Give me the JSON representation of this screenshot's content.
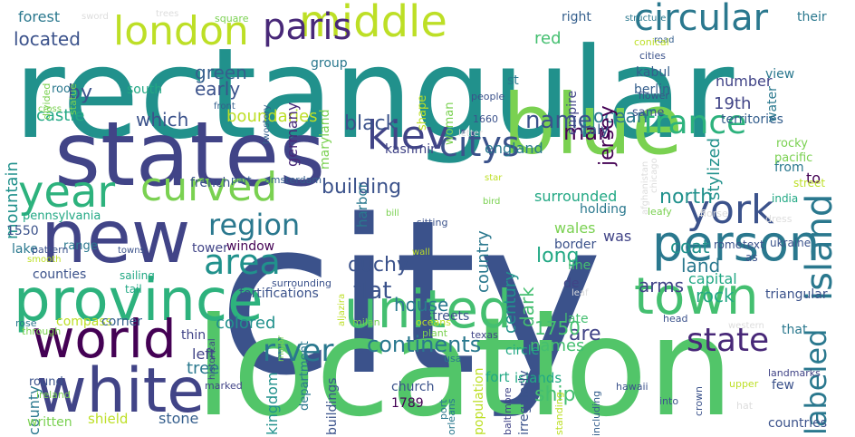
{
  "title": "word cloud",
  "palette": {
    "darkpurple": "#440154",
    "indigo": "#414487",
    "slate": "#355f8d",
    "steel": "#2a788e",
    "teal": "#21918c",
    "sea": "#22a884",
    "green": "#44bf70",
    "lime": "#7ad151",
    "yellowgreen": "#bddf26",
    "yellow": "#e4e419"
  },
  "words": [
    {
      "t": "city",
      "c": "#3b528b"
    },
    {
      "t": "location",
      "c": "#52c569"
    },
    {
      "t": "rectangular",
      "c": "#21918c"
    },
    {
      "t": "states",
      "c": "#414487"
    },
    {
      "t": "blue",
      "c": "#7ad151"
    },
    {
      "t": "new",
      "c": "#414487"
    },
    {
      "t": "white",
      "c": "#414487"
    },
    {
      "t": "province",
      "c": "#2db27d"
    },
    {
      "t": "united",
      "c": "#44bf70"
    },
    {
      "t": "world",
      "c": "#440154"
    },
    {
      "t": "town",
      "c": "#44bf70"
    },
    {
      "t": "person",
      "c": "#2a788e"
    },
    {
      "t": "york",
      "c": "#3b528b"
    },
    {
      "t": "island",
      "c": "#2a788e"
    },
    {
      "t": "middle",
      "c": "#bddf26"
    },
    {
      "t": "london",
      "c": "#bddf26"
    },
    {
      "t": "paris",
      "c": "#482878"
    },
    {
      "t": "circular",
      "c": "#2a788e"
    },
    {
      "t": "kiev",
      "c": "#414487"
    },
    {
      "t": "citys",
      "c": "#3b528b"
    },
    {
      "t": "france",
      "c": "#2db27d"
    },
    {
      "t": "year",
      "c": "#2db27d"
    },
    {
      "t": "curved",
      "c": "#7ad151"
    },
    {
      "t": "area",
      "c": "#21918c"
    },
    {
      "t": "region",
      "c": "#2a788e"
    },
    {
      "t": "state",
      "c": "#482878"
    },
    {
      "t": "river",
      "c": "#2a788e"
    },
    {
      "t": "labeled",
      "c": "#2a788e"
    },
    {
      "t": "continents",
      "c": "#2a788e"
    },
    {
      "t": "flat",
      "c": "#3b528b"
    },
    {
      "t": "duchy",
      "c": "#3b528b"
    },
    {
      "t": "building",
      "c": "#3b528b"
    },
    {
      "t": "black",
      "c": "#3b528b"
    },
    {
      "t": "name",
      "c": "#3b528b"
    },
    {
      "t": "man",
      "c": "#440154"
    },
    {
      "t": "ocean",
      "c": "#2a788e"
    },
    {
      "t": "north",
      "c": "#21918c"
    },
    {
      "t": "located",
      "c": "#3b528b"
    },
    {
      "t": "forest",
      "c": "#2a788e"
    },
    {
      "t": "green",
      "c": "#355f8d"
    },
    {
      "t": "early",
      "c": "#3b528b"
    },
    {
      "t": "by",
      "c": "#3b528b"
    },
    {
      "t": "which",
      "c": "#3b528b"
    },
    {
      "t": "castle",
      "c": "#22a884"
    },
    {
      "t": "boundaries",
      "c": "#bddf26"
    },
    {
      "t": "mountain",
      "c": "#21918c"
    },
    {
      "t": "jersey",
      "c": "#440154"
    },
    {
      "t": "red",
      "c": "#44bf70"
    },
    {
      "t": "stylized",
      "c": "#21918c"
    },
    {
      "t": "19th",
      "c": "#414487"
    },
    {
      "t": "number",
      "c": "#414487"
    },
    {
      "t": "territories",
      "c": "#355f8d"
    },
    {
      "t": "germany",
      "c": "#482878"
    },
    {
      "t": "maryland",
      "c": "#7ad151"
    },
    {
      "t": "century",
      "c": "#21918c"
    },
    {
      "t": "country",
      "c": "#2a788e"
    },
    {
      "t": "dark",
      "c": "#44bf70"
    },
    {
      "t": "long",
      "c": "#22a884"
    },
    {
      "t": "surrounded",
      "c": "#22a884"
    },
    {
      "t": "england",
      "c": "#2a788e"
    },
    {
      "t": "italy",
      "c": "#355f8d"
    },
    {
      "t": "kashmir",
      "c": "#414487"
    },
    {
      "t": "harbor",
      "c": "#2a788e"
    },
    {
      "t": "coat",
      "c": "#21918c"
    },
    {
      "t": "arms",
      "c": "#414487"
    },
    {
      "t": "land",
      "c": "#2a788e"
    },
    {
      "t": "capital",
      "c": "#22a884"
    },
    {
      "t": "rock",
      "c": "#22a884"
    },
    {
      "t": "ship",
      "c": "#44bf70"
    },
    {
      "t": "names",
      "c": "#44bf70"
    },
    {
      "t": "are",
      "c": "#414487"
    },
    {
      "t": "1750",
      "c": "#44bf70"
    },
    {
      "t": "kingdom",
      "c": "#21918c"
    },
    {
      "t": "colored",
      "c": "#21918c"
    },
    {
      "t": "house",
      "c": "#2a788e"
    },
    {
      "t": "tree",
      "c": "#2a788e"
    },
    {
      "t": "left",
      "c": "#414487"
    },
    {
      "t": "stone",
      "c": "#355f8d"
    },
    {
      "t": "shield",
      "c": "#bddf26"
    },
    {
      "t": "county",
      "c": "#2a788e"
    },
    {
      "t": "counties",
      "c": "#3b528b"
    },
    {
      "t": "fortifications",
      "c": "#3b528b"
    },
    {
      "t": "streets",
      "c": "#3b528b"
    },
    {
      "t": "church",
      "c": "#3b528b"
    },
    {
      "t": "1789",
      "c": "#440154"
    },
    {
      "t": "fort",
      "c": "#22a884"
    },
    {
      "t": "islands",
      "c": "#22a884"
    },
    {
      "t": "irregularly",
      "c": "#3b528b"
    },
    {
      "t": "circle",
      "c": "#22a884"
    },
    {
      "t": "triangular",
      "c": "#3b528b"
    },
    {
      "t": "was",
      "c": "#414487"
    },
    {
      "t": "wales",
      "c": "#7ad151"
    },
    {
      "t": "border",
      "c": "#3b528b"
    },
    {
      "t": "to",
      "c": "#440154"
    },
    {
      "t": "from",
      "c": "#2a788e"
    },
    {
      "t": "india",
      "c": "#22a884"
    },
    {
      "t": "rome",
      "c": "#3b528b"
    },
    {
      "t": "text",
      "c": "#3b528b"
    },
    {
      "t": "ukraine",
      "c": "#3b528b"
    },
    {
      "t": "few",
      "c": "#3b528b"
    },
    {
      "t": "countries",
      "c": "#3b528b"
    },
    {
      "t": "that",
      "c": "#2a788e"
    },
    {
      "t": "de",
      "c": "#414487"
    },
    {
      "t": "line",
      "c": "#44bf70"
    },
    {
      "t": "late",
      "c": "#44bf70"
    },
    {
      "t": "written",
      "c": "#7ad151"
    },
    {
      "t": "compass",
      "c": "#bddf26"
    },
    {
      "t": "thin",
      "c": "#414487"
    },
    {
      "t": "corner",
      "c": "#355f8d"
    },
    {
      "t": "lake",
      "c": "#2a788e"
    },
    {
      "t": "1550",
      "c": "#3b528b"
    },
    {
      "t": "pennsylvania",
      "c": "#22a884"
    },
    {
      "t": "french",
      "c": "#3b528b"
    },
    {
      "t": "tower",
      "c": "#414487"
    },
    {
      "t": "window",
      "c": "#440154"
    },
    {
      "t": "department",
      "c": "#2a788e"
    },
    {
      "t": "buildings",
      "c": "#3b528b"
    },
    {
      "t": "population",
      "c": "#bddf26"
    },
    {
      "t": "holding",
      "c": "#2a788e"
    },
    {
      "t": "berlin",
      "c": "#355f8d"
    },
    {
      "t": "kabul",
      "c": "#355f8d"
    },
    {
      "t": "same",
      "c": "#3b528b"
    },
    {
      "t": "empire",
      "c": "#414487"
    },
    {
      "t": "right",
      "c": "#355f8d"
    },
    {
      "t": "south",
      "c": "#22a884"
    },
    {
      "t": "group",
      "c": "#2a788e"
    },
    {
      "t": "roof",
      "c": "#2a788e"
    },
    {
      "t": "range",
      "c": "#2a788e"
    },
    {
      "t": "view",
      "c": "#2a788e"
    },
    {
      "t": "water",
      "c": "#2a788e"
    },
    {
      "t": "their",
      "c": "#2a788e"
    },
    {
      "t": "st",
      "c": "#2a788e"
    },
    {
      "t": "shape",
      "c": "#bddf26"
    },
    {
      "t": "woman",
      "c": "#7ad151"
    },
    {
      "t": "pacific",
      "c": "#7ad151"
    },
    {
      "t": "rocky",
      "c": "#7ad151"
    },
    {
      "t": "street",
      "c": "#bddf26"
    },
    {
      "t": "sword",
      "c": "#dddddd"
    },
    {
      "t": "trees",
      "c": "#dddddd"
    },
    {
      "t": "structure",
      "c": "#2a788e"
    },
    {
      "t": "square",
      "c": "#7ad151"
    },
    {
      "t": "twostory",
      "c": "#355f8d"
    },
    {
      "t": "cities",
      "c": "#3b528b"
    },
    {
      "t": "road",
      "c": "#355f8d"
    },
    {
      "t": "conical",
      "c": "#bddf26"
    },
    {
      "t": "flower",
      "c": "#3b528b"
    },
    {
      "t": "people",
      "c": "#3b528b"
    },
    {
      "t": "1660",
      "c": "#3b528b"
    },
    {
      "t": "letter",
      "c": "#dddddd"
    },
    {
      "t": "statue",
      "c": "#7ad151"
    },
    {
      "t": "divided",
      "c": "#7ad151"
    },
    {
      "t": "front",
      "c": "#355f8d"
    },
    {
      "t": "cross",
      "c": "#7ad151"
    },
    {
      "t": "sailing",
      "c": "#22a884"
    },
    {
      "t": "tail",
      "c": "#22a884"
    },
    {
      "t": "through",
      "c": "#7ad151"
    },
    {
      "t": "part",
      "c": "#355f8d"
    },
    {
      "t": "amsterdam",
      "c": "#355f8d"
    },
    {
      "t": "surrounding",
      "c": "#3b528b"
    },
    {
      "t": "star",
      "c": "#bddf26"
    },
    {
      "t": "bird",
      "c": "#7ad151"
    },
    {
      "t": "chicago",
      "c": "#dddddd"
    },
    {
      "t": "afghanistan",
      "c": "#dddddd"
    },
    {
      "t": "la",
      "c": "#dddddd"
    },
    {
      "t": "leafy",
      "c": "#7ad151"
    },
    {
      "t": "bill",
      "c": "#7ad151"
    },
    {
      "t": "sitting",
      "c": "#3b528b"
    },
    {
      "t": "dress",
      "c": "#dddddd"
    },
    {
      "t": "horse",
      "c": "#dddddd"
    },
    {
      "t": "as",
      "c": "#3b528b"
    },
    {
      "t": "smooth",
      "c": "#bddf26"
    },
    {
      "t": "towns",
      "c": "#3b528b"
    },
    {
      "t": "pattern",
      "c": "#3b528b"
    },
    {
      "t": "rose",
      "c": "#2a788e"
    },
    {
      "t": "historical",
      "c": "#414487"
    },
    {
      "t": "major",
      "c": "#7ad151"
    },
    {
      "t": "aljazira",
      "c": "#bddf26"
    },
    {
      "t": "wall",
      "c": "#bddf26"
    },
    {
      "t": "oceans",
      "c": "#bddf26"
    },
    {
      "t": "plant",
      "c": "#7ad151"
    },
    {
      "t": "milan",
      "c": "#7ad151"
    },
    {
      "t": "leaf",
      "c": "#dddddd"
    },
    {
      "t": "head",
      "c": "#3b528b"
    },
    {
      "t": "western",
      "c": "#dddddd"
    },
    {
      "t": "round",
      "c": "#3b528b"
    },
    {
      "t": "ireland",
      "c": "#7ad151"
    },
    {
      "t": "marked",
      "c": "#414487"
    },
    {
      "t": "usa",
      "c": "#2a788e"
    },
    {
      "t": "port",
      "c": "#2a788e"
    },
    {
      "t": "orleans",
      "c": "#2a788e"
    },
    {
      "t": "texas",
      "c": "#414487"
    },
    {
      "t": "baltimore",
      "c": "#414487"
    },
    {
      "t": "standing",
      "c": "#bddf26"
    },
    {
      "t": "including",
      "c": "#355f8d"
    },
    {
      "t": "hawaii",
      "c": "#3b528b"
    },
    {
      "t": "into",
      "c": "#3b528b"
    },
    {
      "t": "crown",
      "c": "#3b528b"
    },
    {
      "t": "upper",
      "c": "#bddf26"
    },
    {
      "t": "landmarks",
      "c": "#414487"
    },
    {
      "t": "hat",
      "c": "#dddddd"
    }
  ]
}
